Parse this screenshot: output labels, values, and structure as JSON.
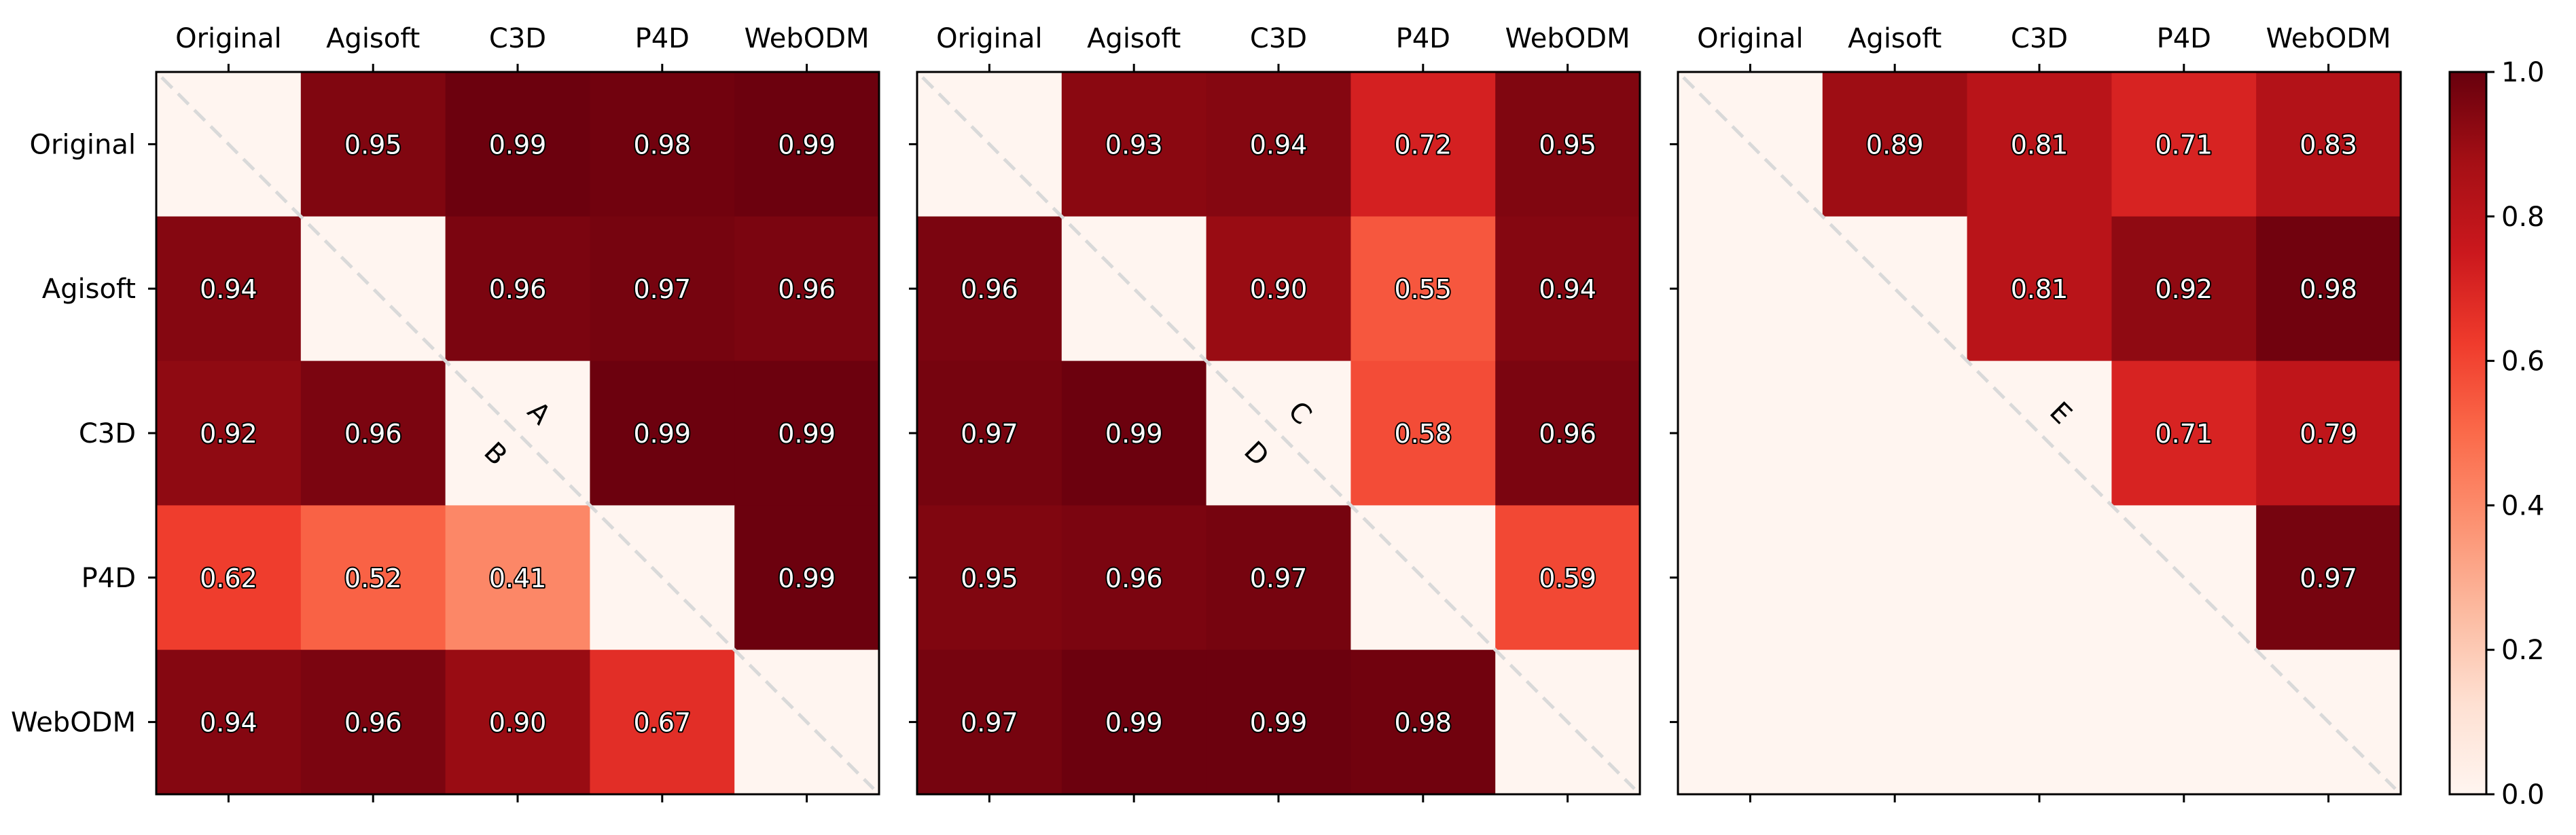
{
  "chart_data": [
    {
      "type": "heatmap",
      "title": "",
      "x_labels": [
        "Original",
        "Agisoft",
        "C3D",
        "P4D",
        "WebODM"
      ],
      "y_labels": [
        "Original",
        "Agisoft",
        "C3D",
        "P4D",
        "WebODM"
      ],
      "values": [
        [
          null,
          0.95,
          0.99,
          0.98,
          0.99
        ],
        [
          0.94,
          null,
          0.96,
          0.97,
          0.96
        ],
        [
          0.92,
          0.96,
          null,
          0.99,
          0.99
        ],
        [
          0.62,
          0.52,
          0.41,
          null,
          0.99
        ],
        [
          0.94,
          0.96,
          0.9,
          0.67,
          null
        ]
      ],
      "annotations": [
        "A",
        "B"
      ]
    },
    {
      "type": "heatmap",
      "title": "",
      "x_labels": [
        "Original",
        "Agisoft",
        "C3D",
        "P4D",
        "WebODM"
      ],
      "y_labels": [
        "",
        "",
        "",
        "",
        ""
      ],
      "values": [
        [
          null,
          0.93,
          0.94,
          0.72,
          0.95
        ],
        [
          0.96,
          null,
          0.9,
          0.55,
          0.94
        ],
        [
          0.97,
          0.99,
          null,
          0.58,
          0.96
        ],
        [
          0.95,
          0.96,
          0.97,
          null,
          0.59
        ],
        [
          0.97,
          0.99,
          0.99,
          0.98,
          null
        ]
      ],
      "annotations": [
        "C",
        "D"
      ]
    },
    {
      "type": "heatmap",
      "title": "",
      "x_labels": [
        "Original",
        "Agisoft",
        "C3D",
        "P4D",
        "WebODM"
      ],
      "y_labels": [
        "",
        "",
        "",
        "",
        ""
      ],
      "values": [
        [
          null,
          0.89,
          0.81,
          0.71,
          0.83
        ],
        [
          null,
          null,
          0.81,
          0.92,
          0.98
        ],
        [
          null,
          null,
          null,
          0.71,
          0.79
        ],
        [
          null,
          null,
          null,
          null,
          0.97
        ],
        [
          null,
          null,
          null,
          null,
          null
        ]
      ],
      "annotations": [
        "E"
      ]
    }
  ],
  "colorbar": {
    "colormap": "Reds",
    "range": [
      0.0,
      1.0
    ],
    "ticks": [
      "0.0",
      "0.2",
      "0.4",
      "0.6",
      "0.8",
      "1.0"
    ]
  }
}
